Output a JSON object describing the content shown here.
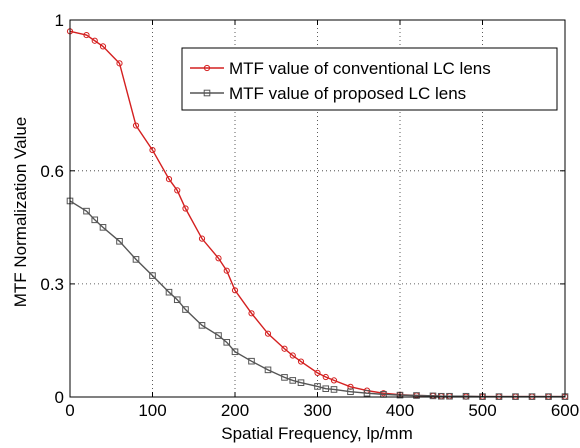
{
  "chart_data": {
    "type": "line",
    "title": "",
    "xlabel": "Spatial Frequency, lp/mm",
    "ylabel": "MTF Normalization Value",
    "xlim": [
      0,
      600
    ],
    "ylim": [
      0,
      1
    ],
    "xticks": [
      0,
      100,
      200,
      300,
      400,
      500,
      600
    ],
    "xtick_labels": [
      "0",
      "100",
      "200",
      "300",
      "400",
      "500",
      "600"
    ],
    "yticks": [
      0,
      0.3,
      0.6,
      1
    ],
    "ytick_labels": [
      "0",
      "0.3",
      "0.6",
      "1"
    ],
    "grid": true,
    "legend_position": "top-right",
    "series": [
      {
        "name": "MTF value of conventional LC lens",
        "color": "#d42020",
        "marker": "circle",
        "x": [
          0,
          20,
          30,
          40,
          60,
          80,
          100,
          120,
          130,
          140,
          160,
          180,
          190,
          200,
          220,
          240,
          260,
          270,
          280,
          300,
          310,
          320,
          340,
          360,
          380,
          400,
          420,
          440,
          450,
          460,
          480,
          500,
          520,
          540,
          560,
          580,
          600
        ],
        "y": [
          0.97,
          0.96,
          0.945,
          0.93,
          0.885,
          0.72,
          0.655,
          0.578,
          0.548,
          0.5,
          0.42,
          0.368,
          0.335,
          0.283,
          0.222,
          0.168,
          0.128,
          0.11,
          0.094,
          0.064,
          0.053,
          0.044,
          0.027,
          0.017,
          0.01,
          0.006,
          0.004,
          0.003,
          0.002,
          0.002,
          0.001,
          0.001,
          0.001,
          0.001,
          0.001,
          0.001,
          0.001
        ]
      },
      {
        "name": "MTF value of proposed LC lens",
        "color": "#555555",
        "marker": "square",
        "x": [
          0,
          20,
          30,
          40,
          60,
          80,
          100,
          120,
          130,
          140,
          160,
          180,
          190,
          200,
          220,
          240,
          260,
          270,
          280,
          300,
          310,
          320,
          340,
          360,
          380,
          400,
          420,
          440,
          450,
          460,
          480,
          500,
          520,
          540,
          560,
          580,
          600
        ],
        "y": [
          0.52,
          0.493,
          0.47,
          0.45,
          0.413,
          0.365,
          0.322,
          0.278,
          0.258,
          0.232,
          0.19,
          0.163,
          0.145,
          0.12,
          0.095,
          0.072,
          0.052,
          0.044,
          0.038,
          0.028,
          0.022,
          0.02,
          0.014,
          0.01,
          0.007,
          0.005,
          0.004,
          0.003,
          0.002,
          0.002,
          0.002,
          0.001,
          0.001,
          0.001,
          0.001,
          0.001,
          0.001
        ]
      }
    ]
  }
}
